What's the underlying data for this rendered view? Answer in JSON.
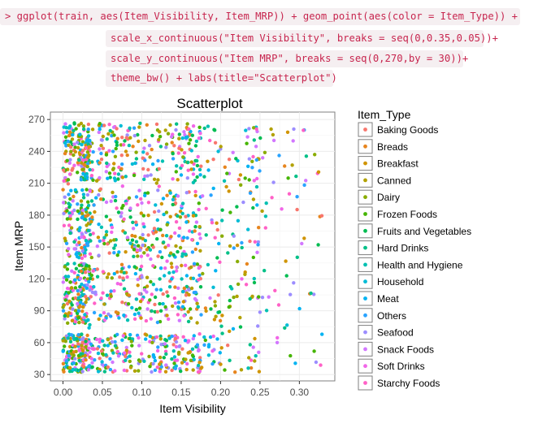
{
  "code": {
    "lines": [
      "> ggplot(train, aes(Item_Visibility, Item_MRP)) + geom_point(aes(color = Item_Type)) +",
      "scale_x_continuous(\"Item Visibility\", breaks = seq(0,0.35,0.05))+",
      "scale_y_continuous(\"Item MRP\", breaks = seq(0,270,by = 30))+",
      "theme_bw() + labs(title=\"Scatterplot\")"
    ]
  },
  "chart_data": {
    "type": "scatter",
    "title": "Scatterplot",
    "xlabel": "Item Visibility",
    "ylabel": "Item MRP",
    "xlim": [
      -0.016,
      0.345
    ],
    "ylim": [
      24,
      277
    ],
    "x_ticks": [
      "0.00",
      "0.05",
      "0.10",
      "0.15",
      "0.20",
      "0.25",
      "0.30"
    ],
    "x_tick_values": [
      0.0,
      0.05,
      0.1,
      0.15,
      0.2,
      0.25,
      0.3
    ],
    "y_ticks": [
      "30",
      "60",
      "90",
      "120",
      "150",
      "180",
      "210",
      "240",
      "270"
    ],
    "y_tick_values": [
      30,
      60,
      90,
      120,
      150,
      180,
      210,
      240,
      270
    ],
    "grid": true,
    "legend": {
      "title": "Item_Type",
      "position": "right",
      "entries": [
        {
          "name": "Baking Goods",
          "color": "#F8766D"
        },
        {
          "name": "Breads",
          "color": "#E7851E"
        },
        {
          "name": "Breakfast",
          "color": "#D09400"
        },
        {
          "name": "Canned",
          "color": "#B2A100"
        },
        {
          "name": "Dairy",
          "color": "#89AC00"
        },
        {
          "name": "Frozen Foods",
          "color": "#45B500"
        },
        {
          "name": "Fruits and Vegetables",
          "color": "#00BC51"
        },
        {
          "name": "Hard Drinks",
          "color": "#00C087"
        },
        {
          "name": "Health and Hygiene",
          "color": "#00C0B2"
        },
        {
          "name": "Household",
          "color": "#00BCD6"
        },
        {
          "name": "Meat",
          "color": "#00B3F2"
        },
        {
          "name": "Others",
          "color": "#29A3FF"
        },
        {
          "name": "Seafood",
          "color": "#9C8DFF"
        },
        {
          "name": "Snack Foods",
          "color": "#D277FF"
        },
        {
          "name": "Soft Drinks",
          "color": "#F166E8"
        },
        {
          "name": "Starchy Foods",
          "color": "#FF61C7"
        }
      ]
    },
    "point_distribution": {
      "note": "dense clusters in MRP bands; x mostly 0-0.19, sparse 0.19-0.33",
      "mrp_bands": [
        [
          32,
          68
        ],
        [
          78,
          135
        ],
        [
          140,
          205
        ],
        [
          212,
          267
        ]
      ],
      "n_points": 1700
    }
  }
}
